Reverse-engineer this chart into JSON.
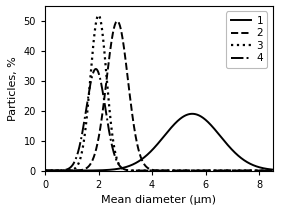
{
  "title": "",
  "xlabel": "Mean diameter (μm)",
  "ylabel": "Particles, %",
  "xlim": [
    0,
    8.5
  ],
  "ylim": [
    0,
    55
  ],
  "xticks": [
    0,
    2,
    4,
    6,
    8
  ],
  "yticks": [
    0,
    10,
    20,
    30,
    40,
    50
  ],
  "curves": [
    {
      "label": "1",
      "linestyle": "solid",
      "linewidth": 1.4,
      "color": "#000000",
      "mu": 5.5,
      "sigma": 1.05,
      "amplitude": 19.0
    },
    {
      "label": "2",
      "linestyle": "dashed",
      "linewidth": 1.4,
      "color": "#000000",
      "mu": 2.7,
      "sigma": 0.4,
      "amplitude": 50.0
    },
    {
      "label": "3",
      "linestyle": "dotted",
      "linewidth": 1.6,
      "color": "#000000",
      "mu": 2.0,
      "sigma": 0.3,
      "amplitude": 52.0
    },
    {
      "label": "4",
      "linestyle": "dashdot",
      "linewidth": 1.4,
      "color": "#000000",
      "mu": 1.9,
      "sigma": 0.36,
      "amplitude": 34.0
    }
  ],
  "legend_loc": "upper right",
  "background_color": "#ffffff",
  "tick_fontsize": 7,
  "label_fontsize": 8,
  "legend_fontsize": 7.5
}
